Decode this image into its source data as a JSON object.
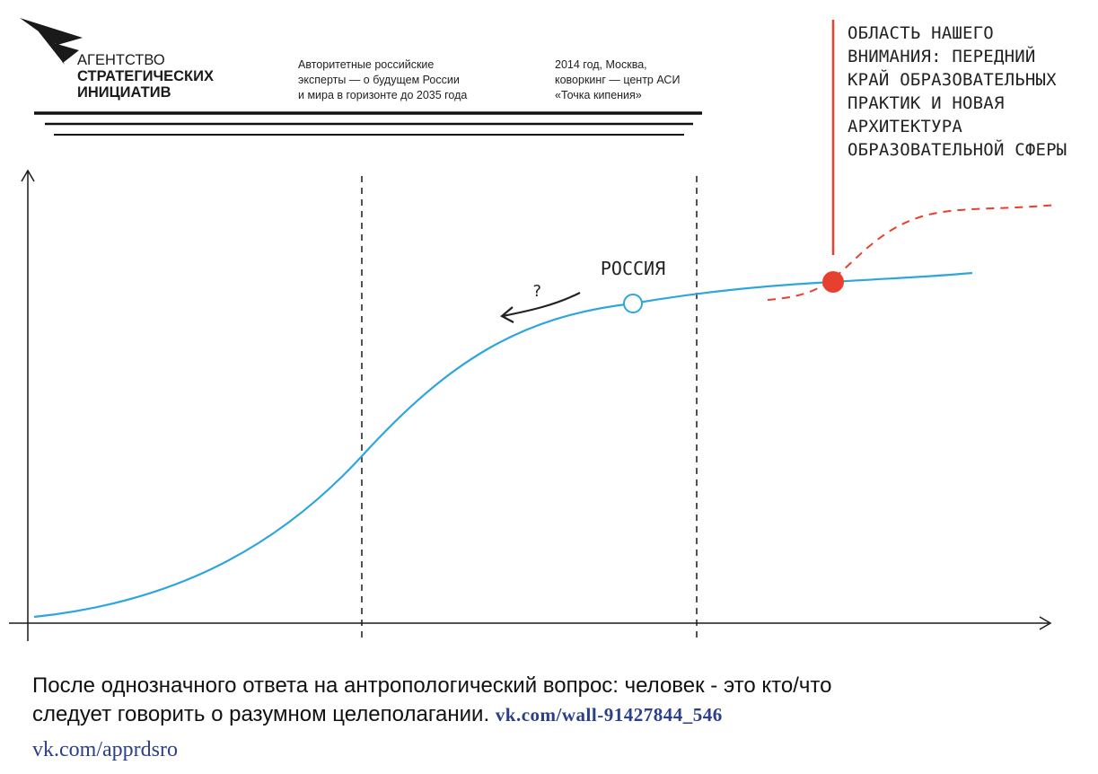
{
  "header": {
    "org_line1": "АГЕНТСТВО",
    "org_line2": "СТРАТЕГИЧЕСКИХ",
    "org_line3": "ИНИЦИАТИВ",
    "subtitle_lines": [
      "Авторитетные российские",
      "эксперты — о будущем России",
      "и мира в горизонте до 2035 года"
    ],
    "event_lines": [
      "2014 год, Москва,",
      "коворкинг — центр АСИ",
      "«Точка кипения»"
    ]
  },
  "focus_note": {
    "lines": [
      "ОБЛАСТЬ НАШЕГО",
      "ВНИМАНИЯ: ПЕРЕДНИЙ",
      "КРАЙ ОБРАЗОВАТЕЛЬНЫХ",
      "ПРАКТИК И НОВАЯ",
      "АРХИТЕКТУРА",
      "ОБРАЗОВАТЕЛЬНОЙ СФЕРЫ"
    ]
  },
  "diagram": {
    "russia_label": "РОССИЯ",
    "question_mark": "?"
  },
  "colors": {
    "curve": "#2ea6dc",
    "accent_red": "#e8402e",
    "axis": "#1a1a1a",
    "link": "#2b3f8a"
  },
  "caption": {
    "line1": "После однозначного ответа на антропологический вопрос: человек - это кто/что",
    "line2": "следует говорить о разумном целеполагании.",
    "link": "vk.com/wall-91427844_546"
  },
  "footer": {
    "link": "vk.com/apprdsro"
  }
}
